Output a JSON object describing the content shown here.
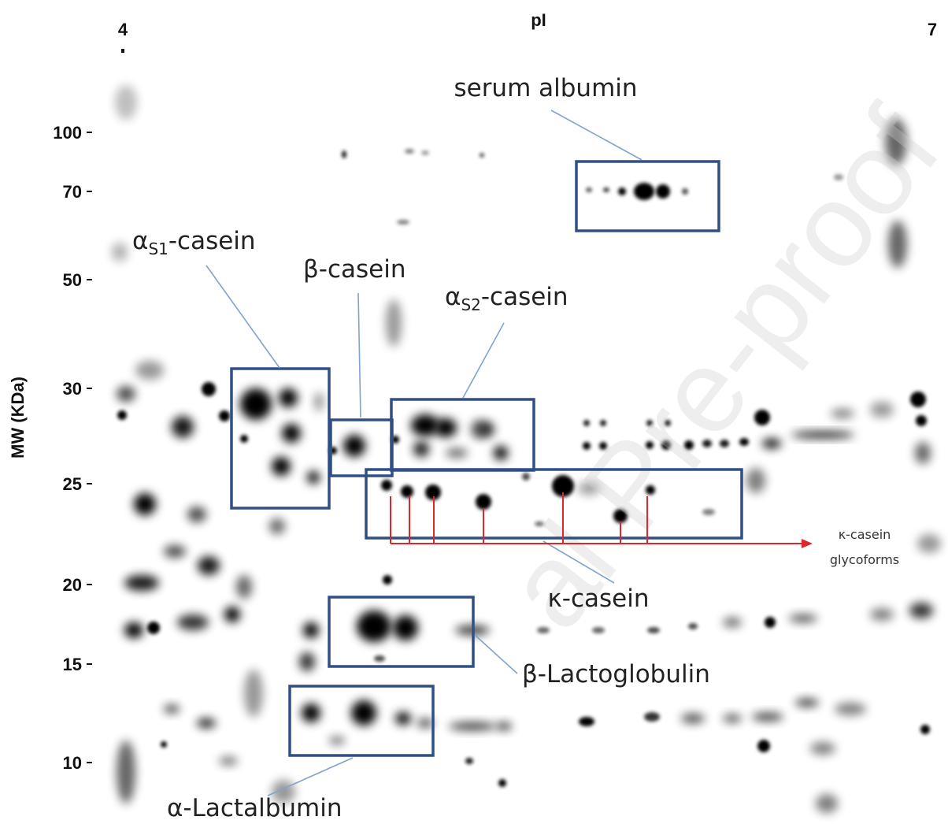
{
  "x_axis": {
    "title": "pI",
    "left": "4",
    "right": "7"
  },
  "y_axis": {
    "title": "MW (KDa)",
    "ticks": [
      100,
      70,
      50,
      30,
      25,
      20,
      15,
      10
    ]
  },
  "labels": {
    "serum_albumin": "serum albumin",
    "as1_casein": [
      "α",
      "S1",
      "-casein"
    ],
    "b_casein": "β-casein",
    "as2_casein": [
      "α",
      "S2",
      "-casein"
    ],
    "k_casein": "κ-casein",
    "k_casein_glycoforms": [
      "κ-casein",
      "glycoforms"
    ],
    "b_lactoglobulin": "β-Lactoglobulin",
    "a_lactalbumin": "α-Lactalbumin"
  },
  "watermark": "al Pre-proof"
}
